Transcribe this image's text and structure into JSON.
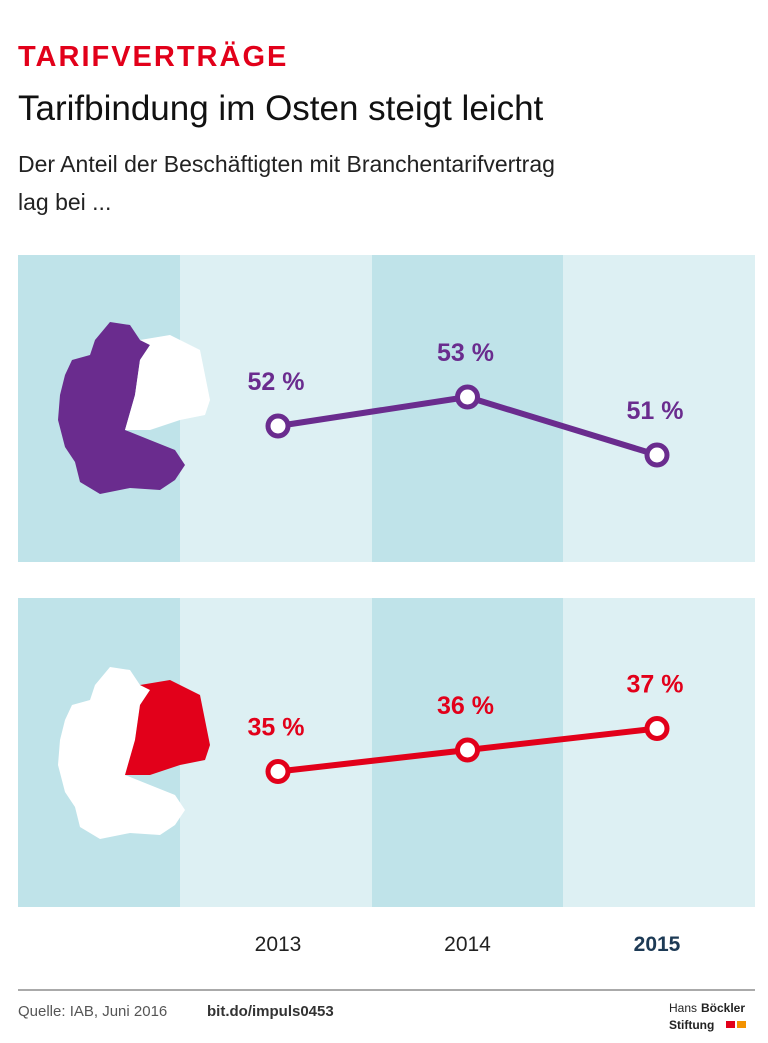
{
  "header": {
    "kicker": "TARIFVERTRÄGE",
    "title": "Tarifbindung im Osten steigt leicht",
    "subtitle": [
      "Der Anteil der Beschäftigten mit Branchentarifvertrag",
      "lag bei ..."
    ]
  },
  "chart_data": {
    "type": "line",
    "categories": [
      "2013",
      "2014",
      "2015"
    ],
    "series": [
      {
        "color": "#6a2c8e",
        "values": [
          52,
          53,
          51
        ],
        "value_labels": [
          "52 %",
          "53 %",
          "51 %"
        ]
      },
      {
        "color": "#e2001a",
        "values": [
          35,
          36,
          37
        ],
        "value_labels": [
          "35 %",
          "36 %",
          "37 %"
        ]
      }
    ]
  },
  "footer": {
    "source": "Quelle: IAB, Juni 2016",
    "link": "bit.do/impuls0453",
    "logo": [
      "Hans",
      "Böckler",
      "Stiftung"
    ]
  }
}
